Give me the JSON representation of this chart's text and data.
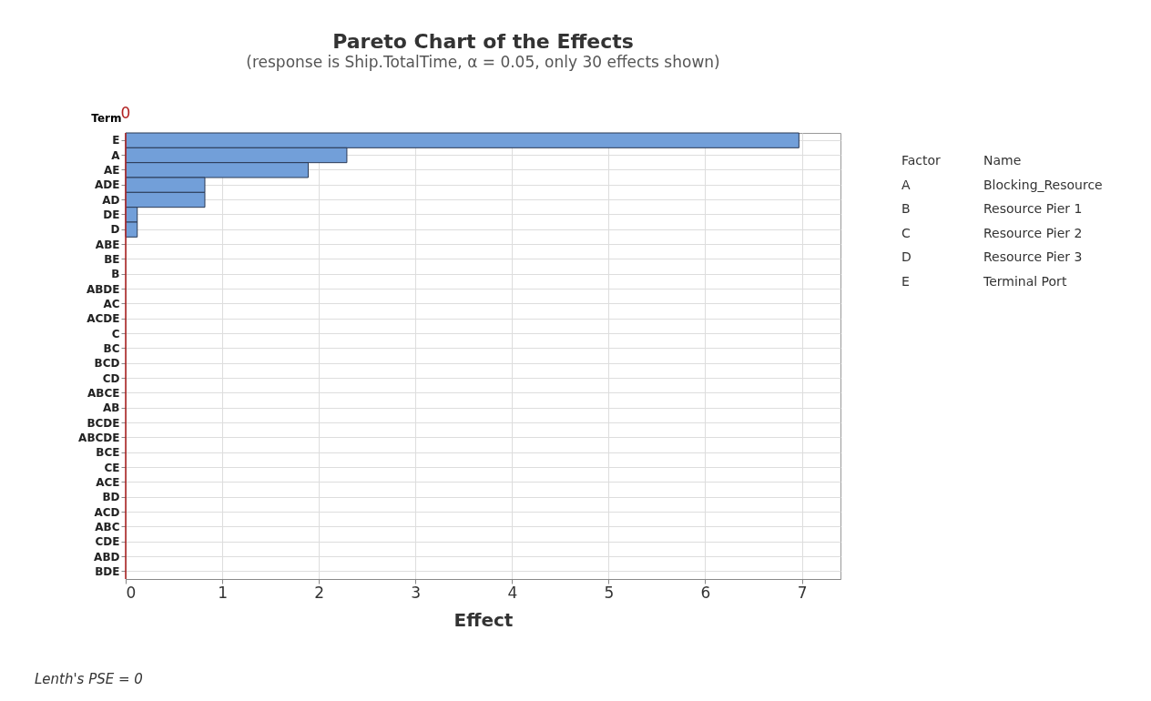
{
  "chart_data": {
    "type": "bar",
    "orientation": "horizontal",
    "title": "Pareto Chart of the Effects",
    "subtitle": "(response is Ship.TotalTime, α = 0.05, only 30 effects shown)",
    "xlabel": "Effect",
    "ylabel": "Term",
    "categories": [
      "E",
      "A",
      "AE",
      "ADE",
      "AD",
      "DE",
      "D",
      "ABE",
      "BE",
      "B",
      "ABDE",
      "AC",
      "ACDE",
      "C",
      "BC",
      "BCD",
      "CD",
      "ABCE",
      "AB",
      "BCDE",
      "ABCDE",
      "BCE",
      "CE",
      "ACE",
      "BD",
      "ACD",
      "ABC",
      "CDE",
      "ABD",
      "BDE"
    ],
    "values": [
      6.97,
      2.29,
      1.89,
      0.82,
      0.82,
      0.12,
      0.12,
      0,
      0,
      0,
      0,
      0,
      0,
      0,
      0,
      0,
      0,
      0,
      0,
      0,
      0,
      0,
      0,
      0,
      0,
      0,
      0,
      0,
      0,
      0
    ],
    "color": "#729fd9",
    "xlim": [
      0,
      7.4
    ],
    "xticks": [
      0,
      1,
      2,
      3,
      4,
      5,
      6,
      7
    ],
    "grid": true,
    "ref_lines": [
      {
        "axis": "x",
        "value": 0,
        "label": "0",
        "color": "#b22222"
      }
    ],
    "annotations": [
      "Factor",
      "Name",
      "A",
      "Blocking_Resource",
      "B",
      "Resource Pier 1",
      "C",
      "Resource Pier 2",
      "D",
      "Resource Pier 3",
      "E",
      "Terminal Port",
      "Lenth's PSE = 0"
    ]
  }
}
